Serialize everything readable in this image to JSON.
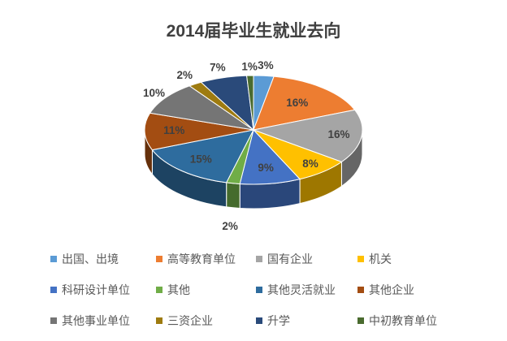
{
  "chart_data": {
    "type": "pie",
    "is_3d": true,
    "title": "2014届毕业生就业去向",
    "legend_position": "bottom",
    "legend_columns": 4,
    "start_angle_deg": 0,
    "direction": "clockwise",
    "background": "#FFFFFF",
    "title_color": "#404040",
    "label_color": "#404040",
    "legend_text_color": "#595959",
    "slices": [
      {
        "label": "出国、出境",
        "value": 3,
        "display": "3%",
        "color": "#5B9BD5",
        "label_placement": "outside",
        "label_r": 1.18
      },
      {
        "label": "高等教育单位",
        "value": 16,
        "display": "16%",
        "color": "#ED7D31",
        "label_placement": "inside",
        "label_r": 0.63
      },
      {
        "label": "国有企业",
        "value": 16,
        "display": "16%",
        "color": "#A5A5A5",
        "label_placement": "inside",
        "label_r": 0.79
      },
      {
        "label": "机关",
        "value": 8,
        "display": "8%",
        "color": "#FFC000",
        "label_placement": "inside",
        "label_r": 0.82
      },
      {
        "label": "科研设计单位",
        "value": 9,
        "display": "9%",
        "color": "#4472C4",
        "label_placement": "inside",
        "label_r": 0.72
      },
      {
        "label": "其他",
        "value": 2,
        "display": "2%",
        "color": "#70AD47",
        "label_placement": "outside",
        "label_r": 1.15
      },
      {
        "label": "其他灵活就业",
        "value": 15,
        "display": "15%",
        "color": "#2E6C9E",
        "label_placement": "inside",
        "label_r": 0.73
      },
      {
        "label": "其他企业",
        "value": 11,
        "display": "11%",
        "color": "#A34D12",
        "label_placement": "inside",
        "label_r": 0.73
      },
      {
        "label": "其他事业单位",
        "value": 10,
        "display": "10%",
        "color": "#757575",
        "label_placement": "outside",
        "label_r": 1.13
      },
      {
        "label": "三资企业",
        "value": 2,
        "display": "2%",
        "color": "#9E7B10",
        "label_placement": "outside",
        "label_r": 1.18
      },
      {
        "label": "升学",
        "value": 7,
        "display": "7%",
        "color": "#2A4A7A",
        "label_placement": "outside",
        "label_r": 1.18
      },
      {
        "label": "中初教育单位",
        "value": 1,
        "display": "1%",
        "color": "#4A6B2F",
        "label_placement": "outside",
        "label_r": 1.15
      }
    ]
  }
}
